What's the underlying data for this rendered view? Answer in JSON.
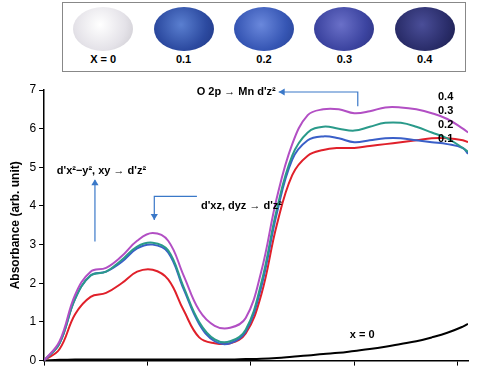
{
  "samples": {
    "labels": [
      "X = 0",
      "0.1",
      "0.2",
      "0.3",
      "0.4"
    ]
  },
  "chart_data": {
    "type": "line",
    "y_label": "Absorbance (arb. unit)",
    "x": [
      0,
      0.15,
      0.3,
      0.45,
      0.6,
      0.75,
      0.9,
      1.05,
      1.2,
      1.35,
      1.5,
      1.65,
      1.8,
      1.95,
      2.1,
      2.25,
      2.4,
      2.55,
      2.7,
      2.85,
      3.0,
      3.15,
      3.3,
      3.45,
      3.6,
      3.75,
      3.9,
      4.05,
      4.1
    ],
    "series": [
      {
        "name": "0.4",
        "color": "#b24fc4",
        "values": [
          0,
          0.5,
          1.7,
          2.3,
          2.4,
          2.7,
          3.1,
          3.3,
          3.1,
          2.2,
          1.3,
          0.9,
          0.85,
          1.1,
          2.3,
          4.2,
          5.6,
          6.35,
          6.5,
          6.5,
          6.4,
          6.45,
          6.55,
          6.55,
          6.5,
          6.4,
          6.25,
          6.0,
          5.9
        ]
      },
      {
        "name": "0.3",
        "color": "#2a9a8a",
        "values": [
          0,
          0.45,
          1.6,
          2.2,
          2.3,
          2.6,
          2.95,
          3.05,
          2.85,
          1.9,
          1.0,
          0.55,
          0.5,
          0.8,
          2.0,
          3.9,
          5.3,
          5.9,
          6.05,
          6.0,
          5.95,
          6.05,
          6.15,
          6.15,
          6.05,
          5.9,
          5.75,
          5.5,
          5.4
        ]
      },
      {
        "name": "0.2",
        "color": "#3a5fc8",
        "values": [
          0,
          0.45,
          1.6,
          2.2,
          2.3,
          2.55,
          2.9,
          3.0,
          2.8,
          1.85,
          0.95,
          0.5,
          0.45,
          0.75,
          1.9,
          3.8,
          5.2,
          5.7,
          5.8,
          5.75,
          5.65,
          5.7,
          5.75,
          5.75,
          5.7,
          5.65,
          5.6,
          5.5,
          5.35
        ]
      },
      {
        "name": "0.1",
        "color": "#e0202a",
        "values": [
          0,
          0.3,
          1.2,
          1.65,
          1.75,
          2.0,
          2.3,
          2.35,
          2.1,
          1.3,
          0.6,
          0.45,
          0.45,
          0.7,
          1.7,
          3.5,
          4.8,
          5.3,
          5.45,
          5.5,
          5.5,
          5.55,
          5.6,
          5.65,
          5.7,
          5.75,
          5.75,
          5.7,
          5.65
        ]
      },
      {
        "name": "x = 0",
        "color": "#000000",
        "values": [
          0,
          0.02,
          0.03,
          0.03,
          0.03,
          0.03,
          0.03,
          0.03,
          0.03,
          0.03,
          0.03,
          0.03,
          0.03,
          0.04,
          0.05,
          0.07,
          0.1,
          0.13,
          0.17,
          0.2,
          0.25,
          0.3,
          0.36,
          0.43,
          0.5,
          0.6,
          0.72,
          0.88,
          0.95
        ]
      }
    ],
    "xlim": [
      0,
      4.1
    ],
    "xticks": [
      0,
      1,
      2,
      3,
      4
    ],
    "ylim": [
      0,
      7
    ],
    "yticks": [
      0,
      1,
      2,
      3,
      4,
      5,
      6,
      7
    ],
    "grid": false,
    "tick_labels": "y",
    "annotations": [
      "d'x²−y², xy → d'z²",
      "d'xz, dyz → d'z²",
      "O 2p → Mn d'z²"
    ]
  }
}
